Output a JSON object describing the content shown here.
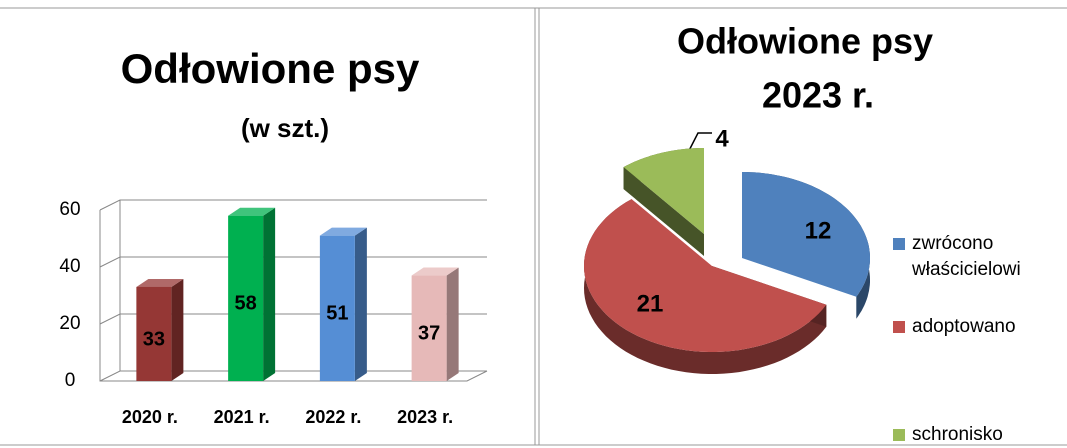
{
  "chart_data": [
    {
      "type": "bar3d",
      "title": "Odłowione psy",
      "subtitle": "(w szt.)",
      "categories": [
        "2020 r.",
        "2021 r.",
        "2022 r.",
        "2023 r."
      ],
      "values": [
        33,
        58,
        51,
        37
      ],
      "colors": [
        "#953735",
        "#00b050",
        "#558ed5",
        "#e6b9b8"
      ],
      "ylim": [
        0,
        60
      ],
      "yticks": [
        0,
        20,
        40,
        60
      ],
      "grid": true
    },
    {
      "type": "pie3d",
      "title": "Odłowione psy",
      "subtitle": "2023 r.",
      "categories": [
        "zwrócono właścicielowi",
        "adoptowano",
        "schronisko"
      ],
      "values": [
        12,
        21,
        4
      ],
      "colors": [
        "#4f81bd",
        "#c0504d",
        "#9bbb59"
      ],
      "legend": "right"
    }
  ]
}
